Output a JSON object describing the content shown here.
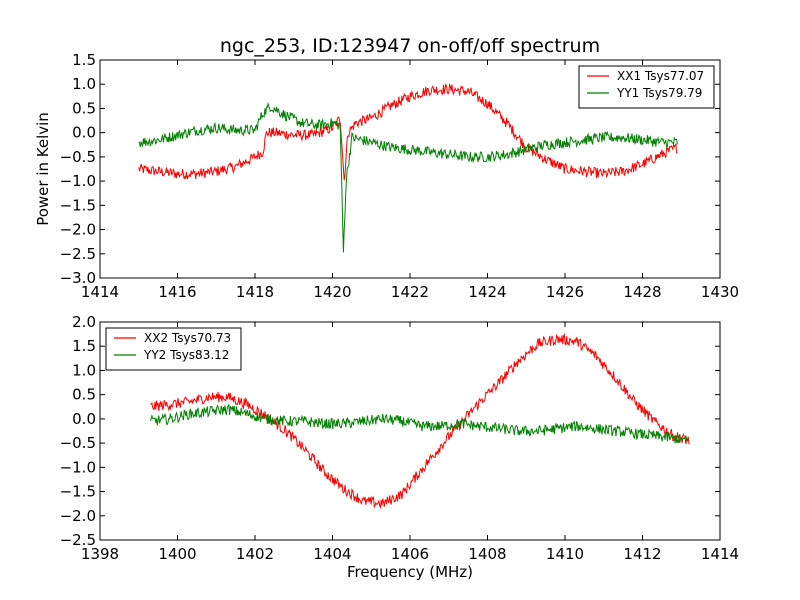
{
  "chart_data": [
    {
      "type": "line",
      "title": "ngc_253, ID:123947 on-off/off spectrum",
      "xlabel": "",
      "ylabel": "Power in Kelvin",
      "xlim": [
        1414,
        1430
      ],
      "ylim": [
        -3.0,
        1.5
      ],
      "xticks": [
        1414,
        1416,
        1418,
        1420,
        1422,
        1424,
        1426,
        1428,
        1430
      ],
      "xtick_labels": [
        "1414",
        "1416",
        "1418",
        "1420",
        "1422",
        "1424",
        "1426",
        "1428",
        "1430"
      ],
      "yticks": [
        -3.0,
        -2.5,
        -2.0,
        -1.5,
        -1.0,
        -0.5,
        0.0,
        0.5,
        1.0,
        1.5
      ],
      "ytick_labels": [
        "−3.0",
        "−2.5",
        "−2.0",
        "−1.5",
        "−1.0",
        "−0.5",
        "0.0",
        "0.5",
        "1.0",
        "1.5"
      ],
      "legend_position": "top-right",
      "grid": false,
      "series": [
        {
          "name": "XX1 Tsys77.07",
          "color": "#ff0000",
          "x": [
            1415.0,
            1415.5,
            1416.0,
            1416.5,
            1417.0,
            1417.5,
            1418.0,
            1418.2,
            1418.3,
            1418.5,
            1419.0,
            1419.5,
            1420.0,
            1420.2,
            1420.25,
            1420.3,
            1420.4,
            1420.6,
            1421.0,
            1421.5,
            1422.0,
            1422.5,
            1423.0,
            1423.5,
            1424.0,
            1424.5,
            1425.0,
            1425.5,
            1426.0,
            1426.5,
            1427.0,
            1427.5,
            1428.0,
            1428.5,
            1428.9
          ],
          "y": [
            -0.75,
            -0.8,
            -0.85,
            -0.85,
            -0.8,
            -0.7,
            -0.5,
            -0.4,
            0.0,
            0.0,
            -0.05,
            -0.05,
            0.1,
            0.3,
            -0.3,
            -1.0,
            0.0,
            0.2,
            0.3,
            0.55,
            0.75,
            0.88,
            0.9,
            0.85,
            0.6,
            0.2,
            -0.3,
            -0.55,
            -0.75,
            -0.8,
            -0.85,
            -0.8,
            -0.65,
            -0.45,
            -0.3
          ]
        },
        {
          "name": "YY1 Tsys79.79",
          "color": "#008000",
          "x": [
            1415.0,
            1415.5,
            1416.0,
            1416.5,
            1417.0,
            1417.5,
            1418.0,
            1418.2,
            1418.4,
            1418.8,
            1419.2,
            1419.6,
            1420.0,
            1420.2,
            1420.28,
            1420.35,
            1420.5,
            1421.0,
            1421.5,
            1422.0,
            1422.5,
            1423.0,
            1423.5,
            1424.0,
            1424.5,
            1425.0,
            1425.5,
            1426.0,
            1426.5,
            1427.0,
            1427.5,
            1428.0,
            1428.5,
            1428.9
          ],
          "y": [
            -0.2,
            -0.15,
            -0.05,
            0.05,
            0.1,
            0.05,
            0.05,
            0.4,
            0.55,
            0.35,
            0.2,
            0.15,
            0.2,
            0.15,
            -2.5,
            -1.0,
            -0.1,
            -0.2,
            -0.3,
            -0.35,
            -0.4,
            -0.45,
            -0.5,
            -0.5,
            -0.45,
            -0.35,
            -0.25,
            -0.2,
            -0.15,
            -0.1,
            -0.1,
            -0.15,
            -0.2,
            -0.2
          ]
        }
      ]
    },
    {
      "type": "line",
      "title": "",
      "xlabel": "Frequency (MHz)",
      "ylabel": "",
      "xlim": [
        1398,
        1414
      ],
      "ylim": [
        -2.5,
        2.0
      ],
      "xticks": [
        1398,
        1400,
        1402,
        1404,
        1406,
        1408,
        1410,
        1412,
        1414
      ],
      "xtick_labels": [
        "1398",
        "1400",
        "1402",
        "1404",
        "1406",
        "1408",
        "1410",
        "1412",
        "1414"
      ],
      "yticks": [
        -2.5,
        -2.0,
        -1.5,
        -1.0,
        -0.5,
        0.0,
        0.5,
        1.0,
        1.5,
        2.0
      ],
      "ytick_labels": [
        "−2.5",
        "−2.0",
        "−1.5",
        "−1.0",
        "−0.5",
        "0.0",
        "0.5",
        "1.0",
        "1.5",
        "2.0"
      ],
      "legend_position": "top-left",
      "grid": false,
      "series": [
        {
          "name": "XX2 Tsys70.73",
          "color": "#ff0000",
          "x": [
            1399.3,
            1399.8,
            1400.3,
            1400.8,
            1401.3,
            1401.8,
            1402.3,
            1402.8,
            1403.3,
            1403.8,
            1404.3,
            1404.8,
            1405.3,
            1405.8,
            1406.3,
            1406.8,
            1407.3,
            1407.8,
            1408.3,
            1408.8,
            1409.3,
            1409.8,
            1410.3,
            1410.8,
            1411.3,
            1411.8,
            1412.3,
            1412.8,
            1413.2
          ],
          "y": [
            0.25,
            0.3,
            0.35,
            0.45,
            0.45,
            0.3,
            0.05,
            -0.25,
            -0.65,
            -1.1,
            -1.45,
            -1.7,
            -1.75,
            -1.55,
            -1.05,
            -0.55,
            -0.1,
            0.35,
            0.75,
            1.2,
            1.55,
            1.65,
            1.6,
            1.3,
            0.85,
            0.35,
            -0.05,
            -0.35,
            -0.45
          ]
        },
        {
          "name": "YY2 Tsys83.12",
          "color": "#008000",
          "x": [
            1399.3,
            1399.8,
            1400.3,
            1400.8,
            1401.3,
            1401.8,
            1402.3,
            1402.8,
            1403.3,
            1403.8,
            1404.3,
            1404.8,
            1405.3,
            1405.8,
            1406.3,
            1406.8,
            1407.3,
            1407.8,
            1408.3,
            1408.8,
            1409.3,
            1409.8,
            1410.3,
            1410.8,
            1411.3,
            1411.8,
            1412.3,
            1412.8,
            1413.2
          ],
          "y": [
            -0.05,
            0.0,
            0.1,
            0.15,
            0.2,
            0.1,
            0.0,
            -0.05,
            -0.05,
            -0.1,
            -0.1,
            -0.05,
            0.0,
            -0.05,
            -0.15,
            -0.15,
            -0.1,
            -0.15,
            -0.2,
            -0.25,
            -0.25,
            -0.2,
            -0.15,
            -0.2,
            -0.25,
            -0.3,
            -0.35,
            -0.4,
            -0.45
          ]
        }
      ]
    }
  ]
}
